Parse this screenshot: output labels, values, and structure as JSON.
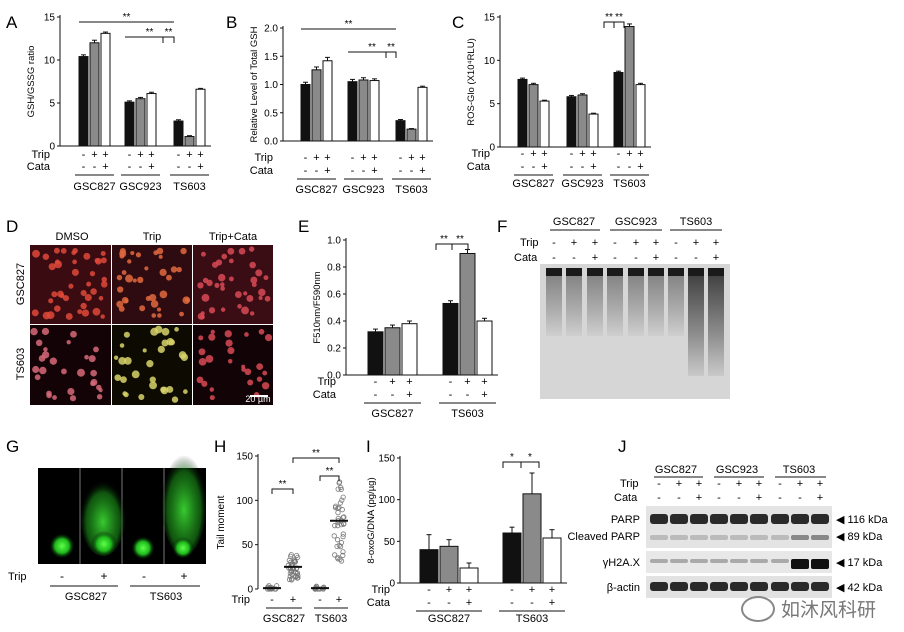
{
  "chart_data": [
    {
      "type": "bar",
      "panel": "A",
      "ylabel": "GSH/GSSG ratio",
      "ylim": [
        0,
        15
      ],
      "yticks": [
        0,
        5,
        10,
        15
      ],
      "groups": [
        "GSC827",
        "GSC923",
        "TS603"
      ],
      "values": [
        [
          10.4,
          12.0,
          13.1
        ],
        [
          5.1,
          5.5,
          6.1
        ],
        [
          2.9,
          1.1,
          6.6
        ]
      ],
      "condition_rows": [
        {
          "label": "Trip",
          "marks": [
            "-",
            "+",
            "+"
          ]
        },
        {
          "label": "Cata",
          "marks": [
            "-",
            "-",
            "+"
          ]
        }
      ],
      "annotations": [
        "**",
        "**",
        "**"
      ]
    },
    {
      "type": "bar",
      "panel": "B",
      "ylabel": "Relative Level of Total GSH",
      "ylim": [
        0,
        2.0
      ],
      "yticks": [
        0.0,
        0.5,
        1.0,
        1.5,
        2.0
      ],
      "groups": [
        "GSC827",
        "GSC923",
        "TS603"
      ],
      "values": [
        [
          1.0,
          1.26,
          1.42
        ],
        [
          1.05,
          1.08,
          1.07
        ],
        [
          0.36,
          0.21,
          0.95
        ]
      ],
      "condition_rows": [
        {
          "label": "Trip",
          "marks": [
            "-",
            "+",
            "+"
          ]
        },
        {
          "label": "Cata",
          "marks": [
            "-",
            "-",
            "+"
          ]
        }
      ],
      "annotations": [
        "**",
        "**",
        "**"
      ]
    },
    {
      "type": "bar",
      "panel": "C",
      "ylabel": "ROS-Glo (X10⁴RLU)",
      "ylim": [
        0,
        15
      ],
      "yticks": [
        0,
        5,
        10,
        15
      ],
      "groups": [
        "GSC827",
        "GSC923",
        "TS603"
      ],
      "values": [
        [
          7.8,
          7.2,
          5.3
        ],
        [
          5.8,
          6.0,
          3.8
        ],
        [
          8.6,
          13.9,
          7.2
        ]
      ],
      "condition_rows": [
        {
          "label": "Trip",
          "marks": [
            "-",
            "+",
            "+"
          ]
        },
        {
          "label": "Cata",
          "marks": [
            "-",
            "-",
            "+"
          ]
        }
      ],
      "annotations": [
        "**",
        "**"
      ]
    },
    {
      "type": "bar",
      "panel": "E",
      "ylabel": "F510nm/F590nm",
      "ylim": [
        0,
        1.0
      ],
      "yticks": [
        0.0,
        0.2,
        0.4,
        0.6,
        0.8,
        1.0
      ],
      "groups": [
        "GSC827",
        "TS603"
      ],
      "values": [
        [
          0.32,
          0.35,
          0.38
        ],
        [
          0.53,
          0.9,
          0.4
        ]
      ],
      "condition_rows": [
        {
          "label": "Trip",
          "marks": [
            "-",
            "+",
            "+"
          ]
        },
        {
          "label": "Cata",
          "marks": [
            "-",
            "-",
            "+"
          ]
        }
      ],
      "annotations": [
        "**",
        "**"
      ]
    },
    {
      "type": "scatter",
      "panel": "H",
      "ylabel": "Tail moment",
      "ylim": [
        0,
        150
      ],
      "yticks": [
        0,
        50,
        100,
        150
      ],
      "groups": [
        "GSC827",
        "TS603"
      ],
      "means": [
        [
          1,
          25
        ],
        [
          1,
          77
        ]
      ],
      "condition_rows": [
        {
          "label": "Trip",
          "marks": [
            "-",
            "+"
          ]
        }
      ],
      "annotations": [
        "**",
        "**",
        "**"
      ]
    },
    {
      "type": "bar",
      "panel": "I",
      "ylabel": "8-oxoG/DNA (pg/µg)",
      "ylim": [
        0,
        150
      ],
      "yticks": [
        0,
        50,
        100,
        150
      ],
      "groups": [
        "GSC827",
        "TS603"
      ],
      "values": [
        [
          40,
          44,
          18
        ],
        [
          60,
          107,
          54
        ]
      ],
      "condition_rows": [
        {
          "label": "Trip",
          "marks": [
            "-",
            "+",
            "+"
          ]
        },
        {
          "label": "Cata",
          "marks": [
            "-",
            "-",
            "+"
          ]
        }
      ],
      "annotations": [
        "*",
        "*"
      ]
    }
  ],
  "panel_labels": {
    "a": "A",
    "b": "B",
    "c": "C",
    "d": "D",
    "e": "E",
    "f": "F",
    "g": "G",
    "h": "H",
    "i": "I",
    "j": "J"
  },
  "panel_d": {
    "columns": [
      "DMSO",
      "Trip",
      "Trip+Cata"
    ],
    "rows": [
      "GSC827",
      "TS603"
    ],
    "scale_bar": "20 µm"
  },
  "panel_f": {
    "groups": [
      "GSC827",
      "GSC923",
      "TS603"
    ],
    "rows": [
      {
        "label": "Trip",
        "marks": [
          "-",
          "+",
          "+",
          "-",
          "+",
          "+",
          "-",
          "+",
          "+"
        ]
      },
      {
        "label": "Cata",
        "marks": [
          "-",
          "-",
          "+",
          "-",
          "-",
          "+",
          "-",
          "-",
          "+"
        ]
      }
    ]
  },
  "panel_g": {
    "row_label": "Trip",
    "marks": [
      "-",
      "+",
      "-",
      "+"
    ],
    "groups": [
      "GSC827",
      "TS603"
    ]
  },
  "panel_j": {
    "groups": [
      "GSC827",
      "GSC923",
      "TS603"
    ],
    "rows": [
      {
        "label": "Trip",
        "marks": [
          "-",
          "+",
          "+",
          "-",
          "+",
          "+",
          "-",
          "+",
          "+"
        ]
      },
      {
        "label": "Cata",
        "marks": [
          "-",
          "-",
          "+",
          "-",
          "-",
          "+",
          "-",
          "-",
          "+"
        ]
      }
    ],
    "blots": [
      {
        "label": "PARP",
        "size": "116 kDa"
      },
      {
        "label": "Cleaved PARP",
        "size": "89 kDa"
      },
      {
        "label": "γH2A.X",
        "size": "17 kDa"
      },
      {
        "label": "β-actin",
        "size": "42 kDa"
      }
    ]
  },
  "watermark": "如沐风科研",
  "colors": {
    "black_bar": "#111111",
    "grey_bar": "#8a8a8a",
    "white_bar": "#ffffff",
    "green_comet": "#2fd62a"
  }
}
